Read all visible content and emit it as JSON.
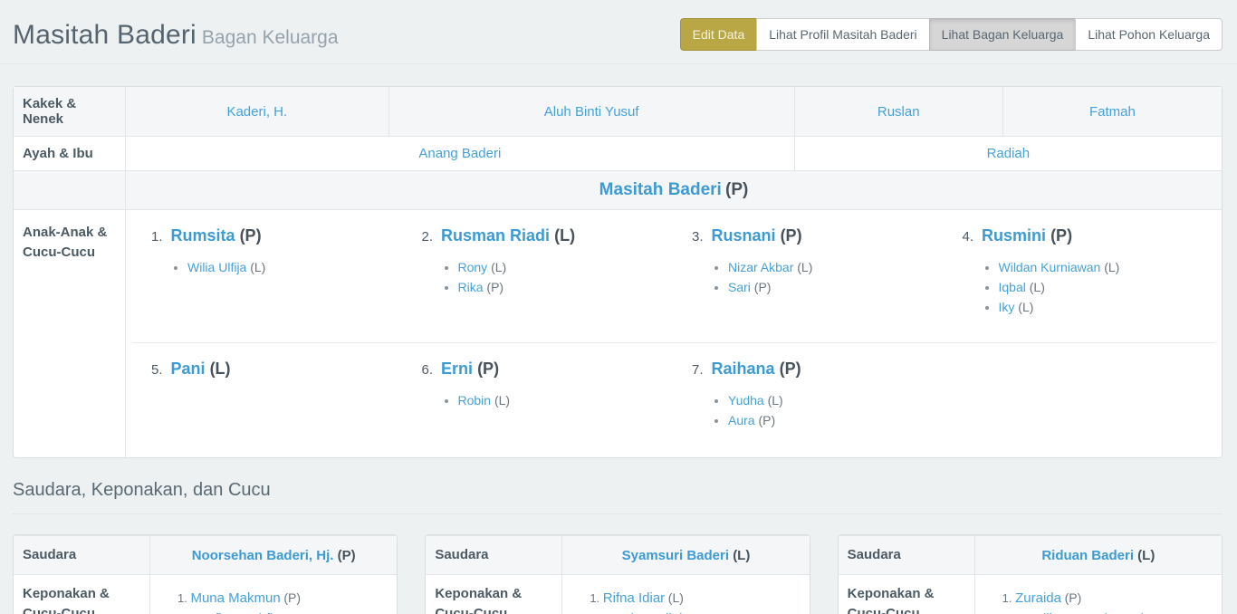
{
  "colors": {
    "link_blue": "#45a2d9",
    "bold_name_blue": "#3d9bd3",
    "gold_button": "#b9a746",
    "active_button_gray": "#d6d6d6",
    "page_bg": "#eef1f2",
    "striped_row": "#f5f6f7"
  },
  "header": {
    "title": "Masitah Baderi",
    "subtitle": "Bagan Keluarga",
    "buttons": [
      {
        "label": "Edit Data",
        "style": "gold"
      },
      {
        "label": "Lihat Profil Masitah Baderi",
        "style": "default"
      },
      {
        "label": "Lihat Bagan Keluarga",
        "style": "active"
      },
      {
        "label": "Lihat Pohon Keluarga",
        "style": "default"
      }
    ]
  },
  "family_table": {
    "grandparents": {
      "label": "Kakek & Nenek",
      "names": [
        "Kaderi, H.",
        "Aluh Binti Yusuf",
        "Ruslan",
        "Fatmah"
      ]
    },
    "parents": {
      "label": "Ayah & Ibu",
      "father": "Anang Baderi",
      "mother": "Radiah"
    },
    "self": {
      "name": "Masitah Baderi",
      "gender": "(P)"
    },
    "children": {
      "label": "Anak-Anak & Cucu-Cucu",
      "items": [
        {
          "num": "1.",
          "name": "Rumsita",
          "gender": "(P)",
          "children": [
            {
              "name": "Wilia Ulfija",
              "gender": "(L)"
            }
          ]
        },
        {
          "num": "2.",
          "name": "Rusman Riadi",
          "gender": "(L)",
          "children": [
            {
              "name": "Rony",
              "gender": "(L)"
            },
            {
              "name": "Rika",
              "gender": "(P)"
            }
          ]
        },
        {
          "num": "3.",
          "name": "Rusnani",
          "gender": "(P)",
          "children": [
            {
              "name": "Nizar Akbar",
              "gender": "(L)"
            },
            {
              "name": "Sari",
              "gender": "(P)"
            }
          ]
        },
        {
          "num": "4.",
          "name": "Rusmini",
          "gender": "(P)",
          "children": [
            {
              "name": "Wildan Kurniawan",
              "gender": "(L)"
            },
            {
              "name": "Iqbal",
              "gender": "(L)"
            },
            {
              "name": "Iky",
              "gender": "(L)"
            }
          ]
        },
        {
          "num": "5.",
          "name": "Pani",
          "gender": "(L)",
          "children": []
        },
        {
          "num": "6.",
          "name": "Erni",
          "gender": "(P)",
          "children": [
            {
              "name": "Robin",
              "gender": "(L)"
            }
          ]
        },
        {
          "num": "7.",
          "name": "Raihana",
          "gender": "(P)",
          "children": [
            {
              "name": "Yudha",
              "gender": "(L)"
            },
            {
              "name": "Aura",
              "gender": "(P)"
            }
          ]
        }
      ]
    }
  },
  "siblings": {
    "heading": "Saudara, Keponakan, dan Cucu",
    "sibling_label": "Saudara",
    "nephew_label": "Keponakan & Cucu-Cucu",
    "tables": [
      {
        "name": "Noorsehan Baderi, Hj.",
        "gender": "(P)",
        "items": [
          {
            "num": "1.",
            "name": "Muna Makmun",
            "gender": "(P)",
            "children": [
              {
                "name": "Nafies Luthfi",
                "gender": "(L)"
              }
            ]
          }
        ]
      },
      {
        "name": "Syamsuri Baderi",
        "gender": "(L)",
        "items": [
          {
            "num": "1.",
            "name": "Rifna Idiar",
            "gender": "(L)",
            "children": [
              {
                "name": "Sari Mardiah",
                "gender": "(P)"
              }
            ]
          }
        ]
      },
      {
        "name": "Riduan Baderi",
        "gender": "(L)",
        "items": [
          {
            "num": "1.",
            "name": "Zuraida",
            "gender": "(P)",
            "children": [
              {
                "name": "Andika Nugraha Rahman",
                "gender": "(L)"
              }
            ]
          }
        ]
      }
    ]
  }
}
